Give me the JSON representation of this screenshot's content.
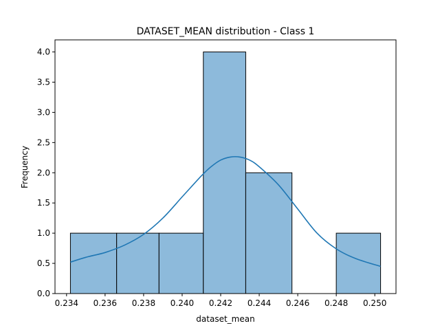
{
  "chart_data": {
    "type": "bar",
    "title": "DATASET_MEAN distribution - Class 1",
    "xlabel": "dataset_mean",
    "ylabel": "Frequency",
    "xlim": [
      0.2334,
      0.2511
    ],
    "ylim": [
      0,
      4.2
    ],
    "x_ticks": [
      0.234,
      0.236,
      0.238,
      0.24,
      0.242,
      0.244,
      0.246,
      0.248,
      0.25
    ],
    "x_tick_labels": [
      "0.234",
      "0.236",
      "0.238",
      "0.240",
      "0.242",
      "0.244",
      "0.246",
      "0.248",
      "0.250"
    ],
    "y_ticks": [
      0,
      0.5,
      1,
      1.5,
      2,
      2.5,
      3,
      3.5,
      4
    ],
    "y_tick_labels": [
      "0.0",
      "0.5",
      "1.0",
      "1.5",
      "2.0",
      "2.5",
      "3.0",
      "3.5",
      "4.0"
    ],
    "bins": [
      {
        "start": 0.2342,
        "end": 0.2366,
        "count": 1
      },
      {
        "start": 0.2366,
        "end": 0.2388,
        "count": 1
      },
      {
        "start": 0.2388,
        "end": 0.2411,
        "count": 1
      },
      {
        "start": 0.2411,
        "end": 0.2433,
        "count": 4
      },
      {
        "start": 0.2433,
        "end": 0.2457,
        "count": 2
      },
      {
        "start": 0.2457,
        "end": 0.248,
        "count": 0
      },
      {
        "start": 0.248,
        "end": 0.2503,
        "count": 1
      }
    ],
    "kde": {
      "x": [
        0.2342,
        0.235,
        0.236,
        0.237,
        0.238,
        0.239,
        0.24,
        0.241,
        0.2415,
        0.242,
        0.2425,
        0.243,
        0.2435,
        0.244,
        0.245,
        0.246,
        0.247,
        0.248,
        0.249,
        0.2503
      ],
      "y": [
        0.52,
        0.6,
        0.68,
        0.8,
        0.98,
        1.25,
        1.6,
        1.95,
        2.1,
        2.21,
        2.26,
        2.26,
        2.21,
        2.1,
        1.8,
        1.4,
        1.0,
        0.74,
        0.58,
        0.45
      ]
    },
    "colors": {
      "bar_fill": "#8dbadb",
      "bar_edge": "#000000",
      "kde_line": "#1f77b4"
    },
    "grid": false
  }
}
